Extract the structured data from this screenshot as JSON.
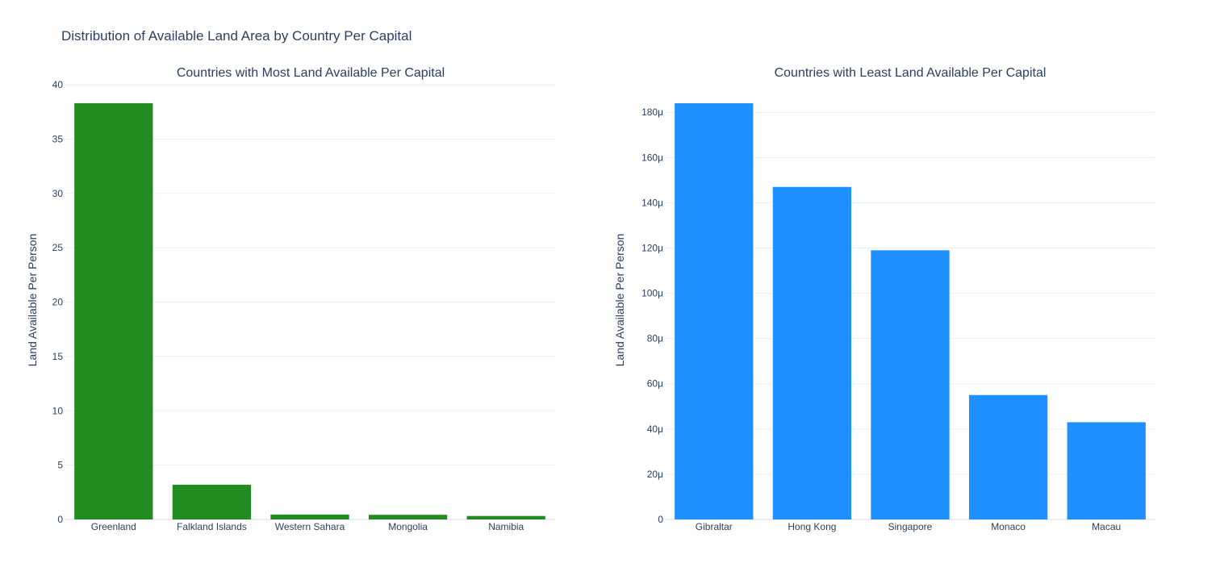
{
  "figure_title": "Distribution of Available Land Area by Country Per Capital",
  "chart_data": [
    {
      "type": "bar",
      "title": "Countries with Most Land Available Per Capital",
      "xlabel": "",
      "ylabel": "Land Available Per Person",
      "categories": [
        "Greenland",
        "Falkland Islands",
        "Western Sahara",
        "Mongolia",
        "Namibia"
      ],
      "values": [
        38.3,
        3.2,
        0.45,
        0.43,
        0.32
      ],
      "ylim": [
        0,
        40
      ],
      "yticks": [
        0,
        5,
        10,
        15,
        20,
        25,
        30,
        35,
        40
      ],
      "ytick_labels": [
        "0",
        "5",
        "10",
        "15",
        "20",
        "25",
        "30",
        "35",
        "40"
      ],
      "color": "#228B22",
      "grid": true
    },
    {
      "type": "bar",
      "title": "Countries with Least Land Available Per Capital",
      "xlabel": "",
      "ylabel": "Land Available Per Person",
      "categories": [
        "Gibraltar",
        "Hong Kong",
        "Singapore",
        "Monaco",
        "Macau"
      ],
      "values": [
        0.000184,
        0.000147,
        0.000119,
        5.5e-05,
        4.3e-05
      ],
      "ylim": [
        0,
        0.000184
      ],
      "yticks": [
        0,
        2e-05,
        4e-05,
        6e-05,
        8e-05,
        0.0001,
        0.00012,
        0.00014,
        0.00016,
        0.00018
      ],
      "ytick_labels": [
        "0",
        "20μ",
        "40μ",
        "60μ",
        "80μ",
        "100μ",
        "120μ",
        "140μ",
        "160μ",
        "180μ"
      ],
      "color": "#1E90FF",
      "grid": true
    }
  ]
}
